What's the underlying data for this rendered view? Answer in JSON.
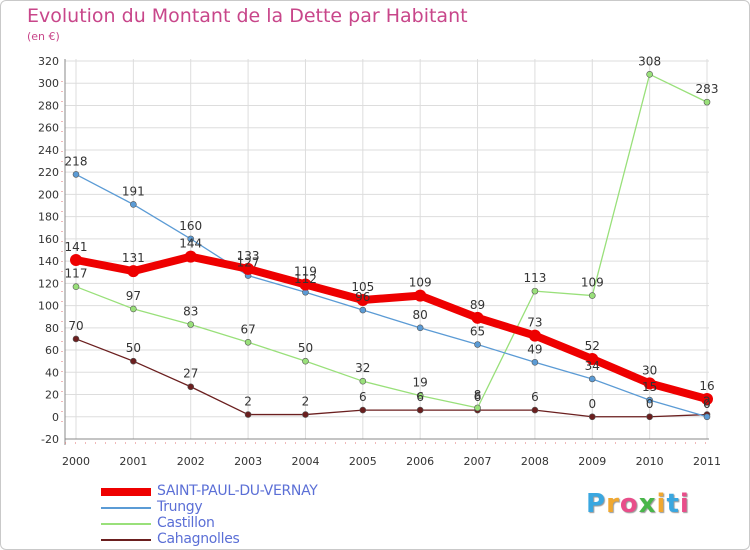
{
  "header": {
    "title": "Evolution du Montant de la Dette par Habitant",
    "unit": "(en €)"
  },
  "logo": {
    "letters": [
      "P",
      "r",
      "o",
      "x",
      "i",
      "t",
      "i"
    ],
    "colors": [
      "#3aa7e0",
      "#f0a830",
      "#e84e8a",
      "#49b64a",
      "#f0a830",
      "#3aa7e0",
      "#e84e8a"
    ]
  },
  "chart_data": {
    "type": "line",
    "x": [
      "2000",
      "2001",
      "2002",
      "2003",
      "2004",
      "2005",
      "2006",
      "2007",
      "2008",
      "2009",
      "2010",
      "2011"
    ],
    "ylim": [
      -20,
      320
    ],
    "yticks": [
      "-20",
      "0",
      "20",
      "40",
      "60",
      "80",
      "100",
      "120",
      "140",
      "160",
      "180",
      "200",
      "220",
      "240",
      "260",
      "280",
      "300",
      "320"
    ],
    "grid": true,
    "legend_position": "bottom-left",
    "series": [
      {
        "name": "SAINT-PAUL-DU-VERNAY",
        "color": "#ee0000",
        "values": [
          141,
          131,
          144,
          133,
          119,
          105,
          109,
          89,
          73,
          52,
          30,
          16
        ],
        "labels": [
          "141",
          "131",
          "144",
          "133",
          "119",
          "105",
          "109",
          "89",
          "73",
          "52",
          "30",
          "16"
        ]
      },
      {
        "name": "Trungy",
        "color": "#5b9bd5",
        "values": [
          218,
          191,
          160,
          127,
          112,
          96,
          80,
          65,
          49,
          34,
          15,
          0
        ],
        "labels": [
          "218",
          "191",
          "160",
          "127",
          "112",
          "96",
          "80",
          "65",
          "49",
          "34",
          "15",
          "0"
        ]
      },
      {
        "name": "Castillon",
        "color": "#99e07a",
        "values": [
          117,
          97,
          83,
          67,
          50,
          32,
          19,
          8,
          113,
          109,
          308,
          283
        ],
        "labels": [
          "117",
          "97",
          "83",
          "67",
          "50",
          "32",
          "19",
          "8",
          "113",
          "109",
          "308",
          "283"
        ]
      },
      {
        "name": "Cahagnolles",
        "color": "#6b1f1f",
        "values": [
          70,
          50,
          27,
          2,
          2,
          6,
          6,
          6,
          6,
          0,
          0,
          2
        ],
        "labels": [
          "70",
          "50",
          "27",
          "2",
          "2",
          "6",
          "6",
          "6",
          "6",
          "0",
          "0",
          "2"
        ]
      }
    ]
  }
}
